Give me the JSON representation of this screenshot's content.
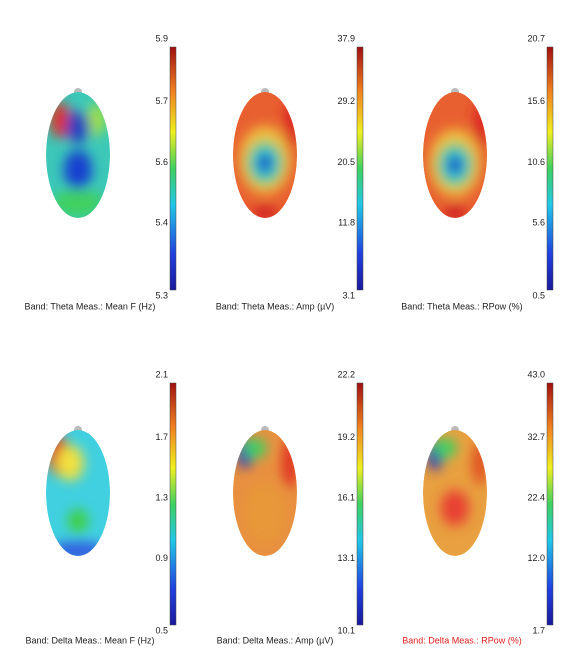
{
  "panels": [
    {
      "caption": "Band: Theta   Meas.: Mean F (Hz)",
      "ticks": [
        "5.9",
        "5.7",
        "5.6",
        "5.4",
        "5.3"
      ]
    },
    {
      "caption": "Band: Theta   Meas.: Amp (µV)",
      "ticks": [
        "37.9",
        "29.2",
        "20.5",
        "11.8",
        "3.1"
      ]
    },
    {
      "caption": "Band: Theta   Meas.: RPow (%)",
      "ticks": [
        "20.7",
        "15.6",
        "10.6",
        "5.6",
        "0.5"
      ]
    },
    {
      "caption": "Band: Delta   Meas.: Mean F (Hz)",
      "ticks": [
        "2.1",
        "1.7",
        "1.3",
        "0.9",
        "0.5"
      ]
    },
    {
      "caption": "Band: Delta   Meas.: Amp (µV)",
      "ticks": [
        "22.2",
        "19.2",
        "16.1",
        "13.1",
        "10.1"
      ]
    },
    {
      "caption": "Band: Delta   Meas.: RPow (%)",
      "ticks": [
        "43.0",
        "32.7",
        "22.4",
        "12.0",
        "1.7"
      ]
    }
  ]
}
